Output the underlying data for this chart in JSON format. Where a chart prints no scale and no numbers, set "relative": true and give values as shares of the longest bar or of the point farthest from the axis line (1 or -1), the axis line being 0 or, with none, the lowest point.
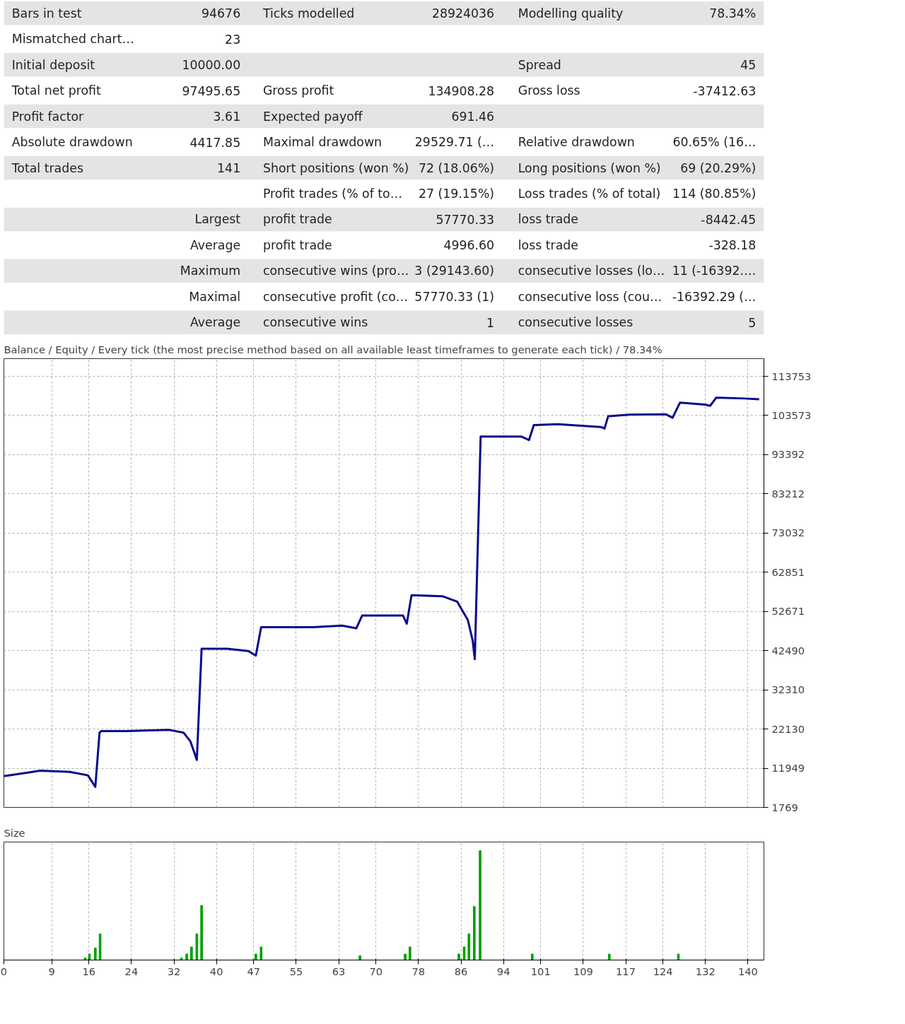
{
  "chart_data": [
    {
      "type": "other",
      "cell_labels": [
        [
          "Bars in test",
          "94676",
          "Ticks modelled",
          "28924036",
          "Modelling quality",
          "78.34%"
        ],
        [
          "Mismatched chart…",
          "23",
          null,
          null,
          null,
          null
        ],
        [
          "Initial deposit",
          "10000.00",
          null,
          null,
          "Spread",
          "45"
        ],
        [
          "Total net profit",
          "97495.65",
          "Gross profit",
          "134908.28",
          "Gross loss",
          "-37412.63"
        ],
        [
          "Profit factor",
          "3.61",
          "Expected payoff",
          "691.46",
          null,
          null
        ],
        [
          "Absolute drawdown",
          "4417.85",
          "Maximal drawdown",
          "29529.71 (…",
          "Relative drawdown",
          "60.65% (16…"
        ],
        [
          "Total trades",
          "141",
          "Short positions (won %)",
          "72 (18.06%)",
          "Long positions (won %)",
          "69 (20.29%)"
        ],
        [
          null,
          null,
          "Profit trades (% of to…",
          "27 (19.15%)",
          "Loss trades (% of total)",
          "114 (80.85%)"
        ],
        [
          null,
          "Largest",
          "profit trade",
          "57770.33",
          "loss trade",
          "-8442.45"
        ],
        [
          null,
          "Average",
          "profit trade",
          "4996.60",
          "loss trade",
          "-328.18"
        ],
        [
          null,
          "Maximum",
          "consecutive wins (pro…",
          "3 (29143.60)",
          "consecutive losses (lo…",
          "11 (-16392.…"
        ],
        [
          null,
          "Maximal",
          "consecutive profit (co…",
          "57770.33 (1)",
          "consecutive loss (cou…",
          "-16392.29 (…"
        ],
        [
          null,
          "Average",
          "consecutive wins",
          "1",
          "consecutive losses",
          "5"
        ]
      ]
    },
    {
      "type": "line",
      "title": "Balance / Equity / Every tick (the most precise method based on all available least timeframes to generate each tick) / 78.34%",
      "xlim": [
        0,
        143
      ],
      "xticks": [
        0,
        9,
        16,
        24,
        32,
        40,
        47,
        55,
        63,
        70,
        78,
        86,
        94,
        101,
        109,
        117,
        124,
        132,
        140
      ],
      "ylim": [
        1769,
        118350
      ],
      "yticks": [
        1769,
        11949,
        22130,
        32310,
        42490,
        52671,
        62851,
        73032,
        83212,
        93392,
        103573,
        113753
      ],
      "tick_labels": "y",
      "grid": true,
      "series": [
        {
          "color": "#0a0a8c",
          "x": [
            0,
            5.4,
            6.8,
            12.4,
            15.8,
            17.2,
            18,
            18.3,
            23,
            31.1,
            33.8,
            35.1,
            36.3,
            37.2,
            42,
            46,
            47.4,
            48.4,
            58.2,
            63.6,
            66.3,
            67.4,
            75.1,
            75.8,
            76.7,
            82.6,
            85.3,
            87.3,
            88.2,
            88.6,
            89.7,
            97.4,
            98.8,
            99.7,
            104.2,
            112.3,
            113,
            113.7,
            117.7,
            124.5,
            125.8,
            127.2,
            131.9,
            132.9,
            134,
            139.4,
            142.1
          ],
          "values": [
            9900,
            11000,
            11300,
            11000,
            10100,
            7100,
            21200,
            21600,
            21600,
            21900,
            21200,
            18900,
            14100,
            43000,
            43000,
            42400,
            41200,
            48600,
            48600,
            49000,
            48300,
            51600,
            51600,
            49500,
            56900,
            56600,
            55200,
            50400,
            45100,
            40300,
            98100,
            98100,
            97200,
            101100,
            101300,
            100600,
            100200,
            103400,
            103800,
            103900,
            103000,
            106900,
            106400,
            106100,
            108200,
            108000,
            107800
          ]
        }
      ]
    },
    {
      "type": "bar",
      "title": "Size",
      "relative": true,
      "xlim": [
        0,
        143
      ],
      "xticks": [
        0,
        9,
        16,
        24,
        32,
        40,
        47,
        55,
        63,
        70,
        78,
        86,
        94,
        101,
        109,
        117,
        124,
        132,
        140
      ],
      "tick_labels": "x",
      "grid": "x",
      "series": [
        {
          "color": "#00a000",
          "x": [
            15.3,
            16.1,
            17.2,
            18.1,
            33.4,
            34.4,
            35.3,
            36.3,
            37.2,
            47.4,
            48.4,
            67,
            75.5,
            76.4,
            85.6,
            86.6,
            87.5,
            88.5,
            89.6,
            99.4,
            113.9,
            126.9
          ],
          "values": [
            0.02,
            0.055,
            0.11,
            0.24,
            0.02,
            0.055,
            0.12,
            0.24,
            0.5,
            0.055,
            0.12,
            0.04,
            0.055,
            0.12,
            0.055,
            0.12,
            0.24,
            0.49,
            1,
            0.055,
            0.055,
            0.055
          ]
        }
      ]
    }
  ]
}
